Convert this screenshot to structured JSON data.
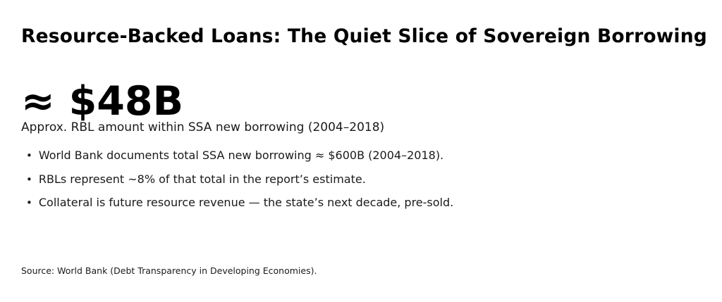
{
  "slide": {
    "title": "Resource-Backed Loans: The Quiet Slice of Sovereign Borrowing",
    "stat": {
      "value": "≈ $48B",
      "label": "Approx. RBL amount within SSA new borrowing (2004–2018)"
    },
    "bullet_glyph": "•",
    "bullets": [
      "World Bank documents total SSA new borrowing ≈ $600B (2004–2018).",
      "RBLs represent ~8% of that total in the report’s estimate.",
      "Collateral is future resource revenue — the state’s next decade, pre-sold."
    ],
    "source": "Source: World Bank (Debt Transparency in Developing Economies).",
    "colors": {
      "background": "#ffffff",
      "title_text": "#000000",
      "stat_text": "#000000",
      "body_text": "#1a1a1a"
    }
  }
}
